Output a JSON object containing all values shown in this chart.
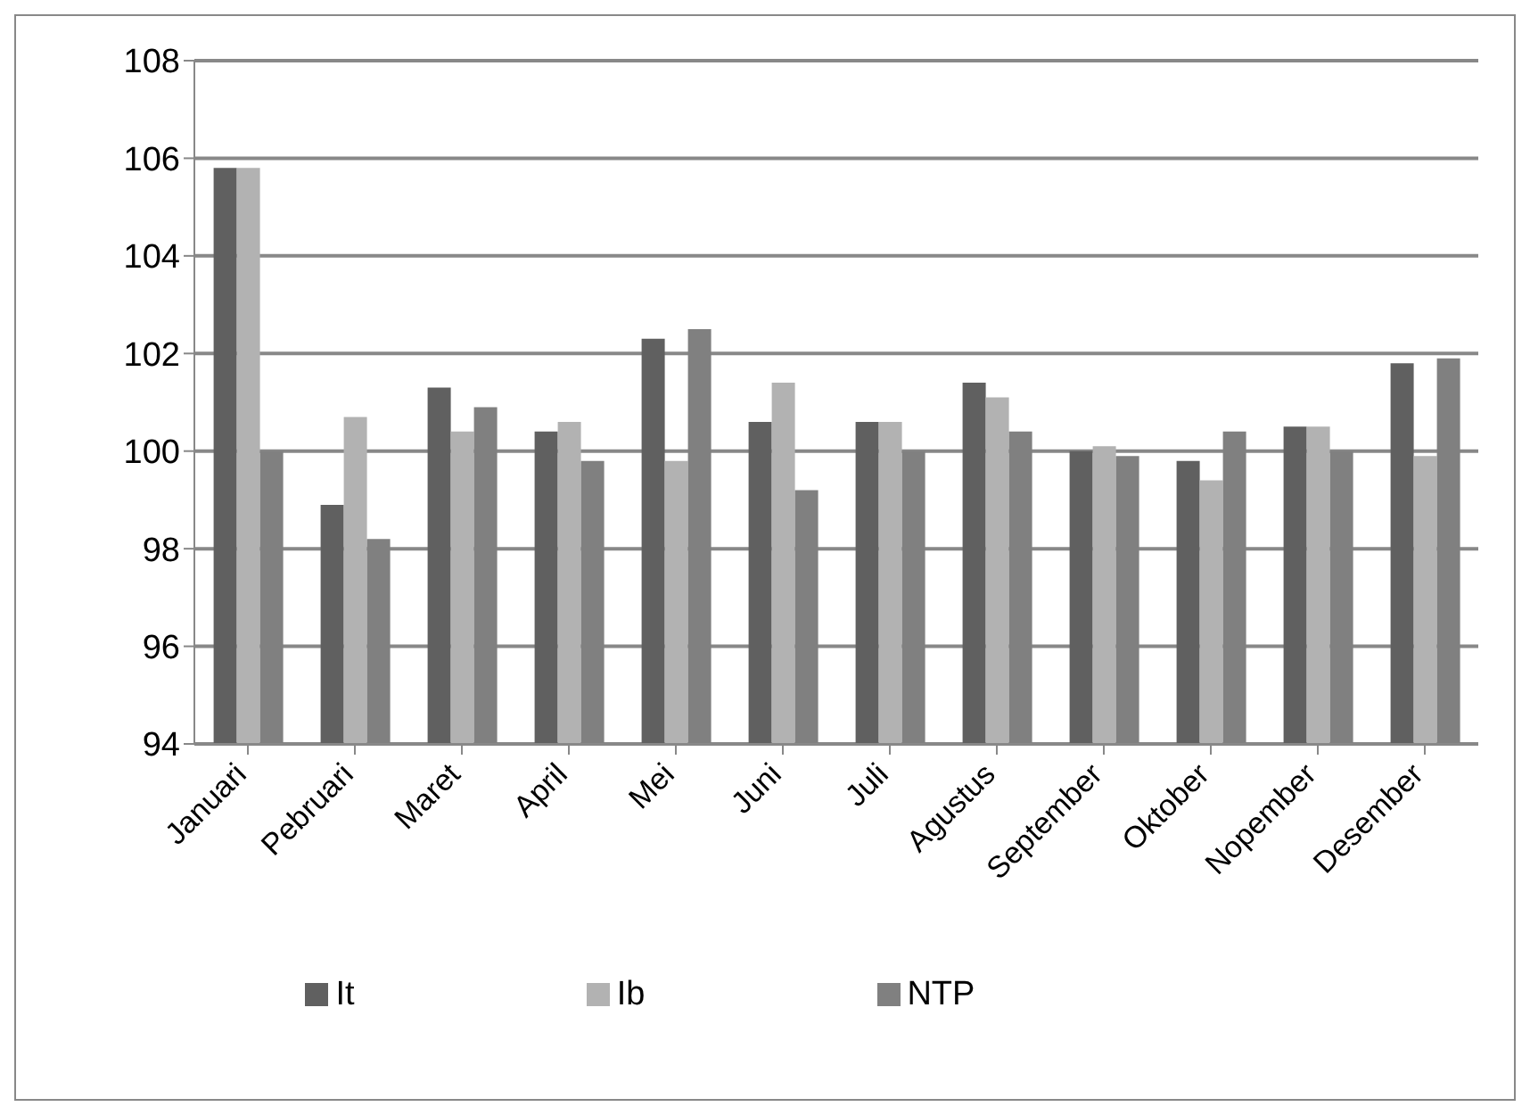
{
  "chart_data": {
    "type": "bar",
    "categories": [
      "Januari",
      "Pebruari",
      "Maret",
      "April",
      "Mei",
      "Juni",
      "Juli",
      "Agustus",
      "September",
      "Oktober",
      "Nopember",
      "Desember"
    ],
    "series": [
      {
        "name": "It",
        "color": "#606060",
        "values": [
          105.8,
          98.9,
          101.3,
          100.4,
          102.3,
          100.6,
          100.6,
          101.4,
          100.0,
          99.8,
          100.5,
          101.8
        ]
      },
      {
        "name": "Ib",
        "color": "#b2b2b2",
        "values": [
          105.8,
          100.7,
          100.4,
          100.6,
          99.8,
          101.4,
          100.6,
          101.1,
          100.1,
          99.4,
          100.5,
          99.9
        ]
      },
      {
        "name": "NTP",
        "color": "#808080",
        "values": [
          100.0,
          98.2,
          100.9,
          99.8,
          102.5,
          99.2,
          100.0,
          100.4,
          99.9,
          100.4,
          100.0,
          101.9
        ]
      }
    ],
    "ylim": [
      94,
      108
    ],
    "yticks": [
      94,
      96,
      98,
      100,
      102,
      104,
      106,
      108
    ],
    "grid": "y",
    "legend": "bottom"
  }
}
